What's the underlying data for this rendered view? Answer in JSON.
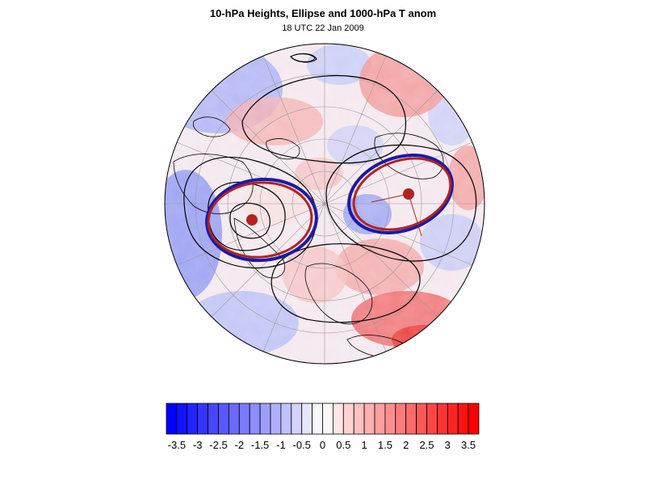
{
  "title": "10-hPa Heights, Ellipse and 1000-hPa T anom",
  "subtitle": "18 UTC 22 Jan 2009",
  "colorbar": {
    "levels": [
      -3.5,
      -3.25,
      -3,
      -2.75,
      -2.5,
      -2.25,
      -2,
      -1.75,
      -1.5,
      -1.25,
      -1,
      -0.75,
      -0.5,
      -0.25,
      0,
      0.25,
      0.5,
      0.75,
      1,
      1.25,
      1.5,
      1.75,
      2,
      2.25,
      2.5,
      2.75,
      3,
      3.25,
      3.5
    ],
    "tick_labels": [
      "-3.5",
      "-3",
      "-2.5",
      "-2",
      "-1.5",
      "-1",
      "-0.5",
      "0",
      "0.5",
      "1",
      "1.5",
      "2",
      "2.5",
      "3",
      "3.5"
    ],
    "negative_color": "#0000ff",
    "positive_color": "#ff0000",
    "neutral_color": "#ffffff"
  },
  "map": {
    "projection": "polar stereographic (north pole)",
    "ellipse_color": "#b22222",
    "ellipse_outline_color": "#1a1aa8",
    "contour_color": "#000000"
  }
}
